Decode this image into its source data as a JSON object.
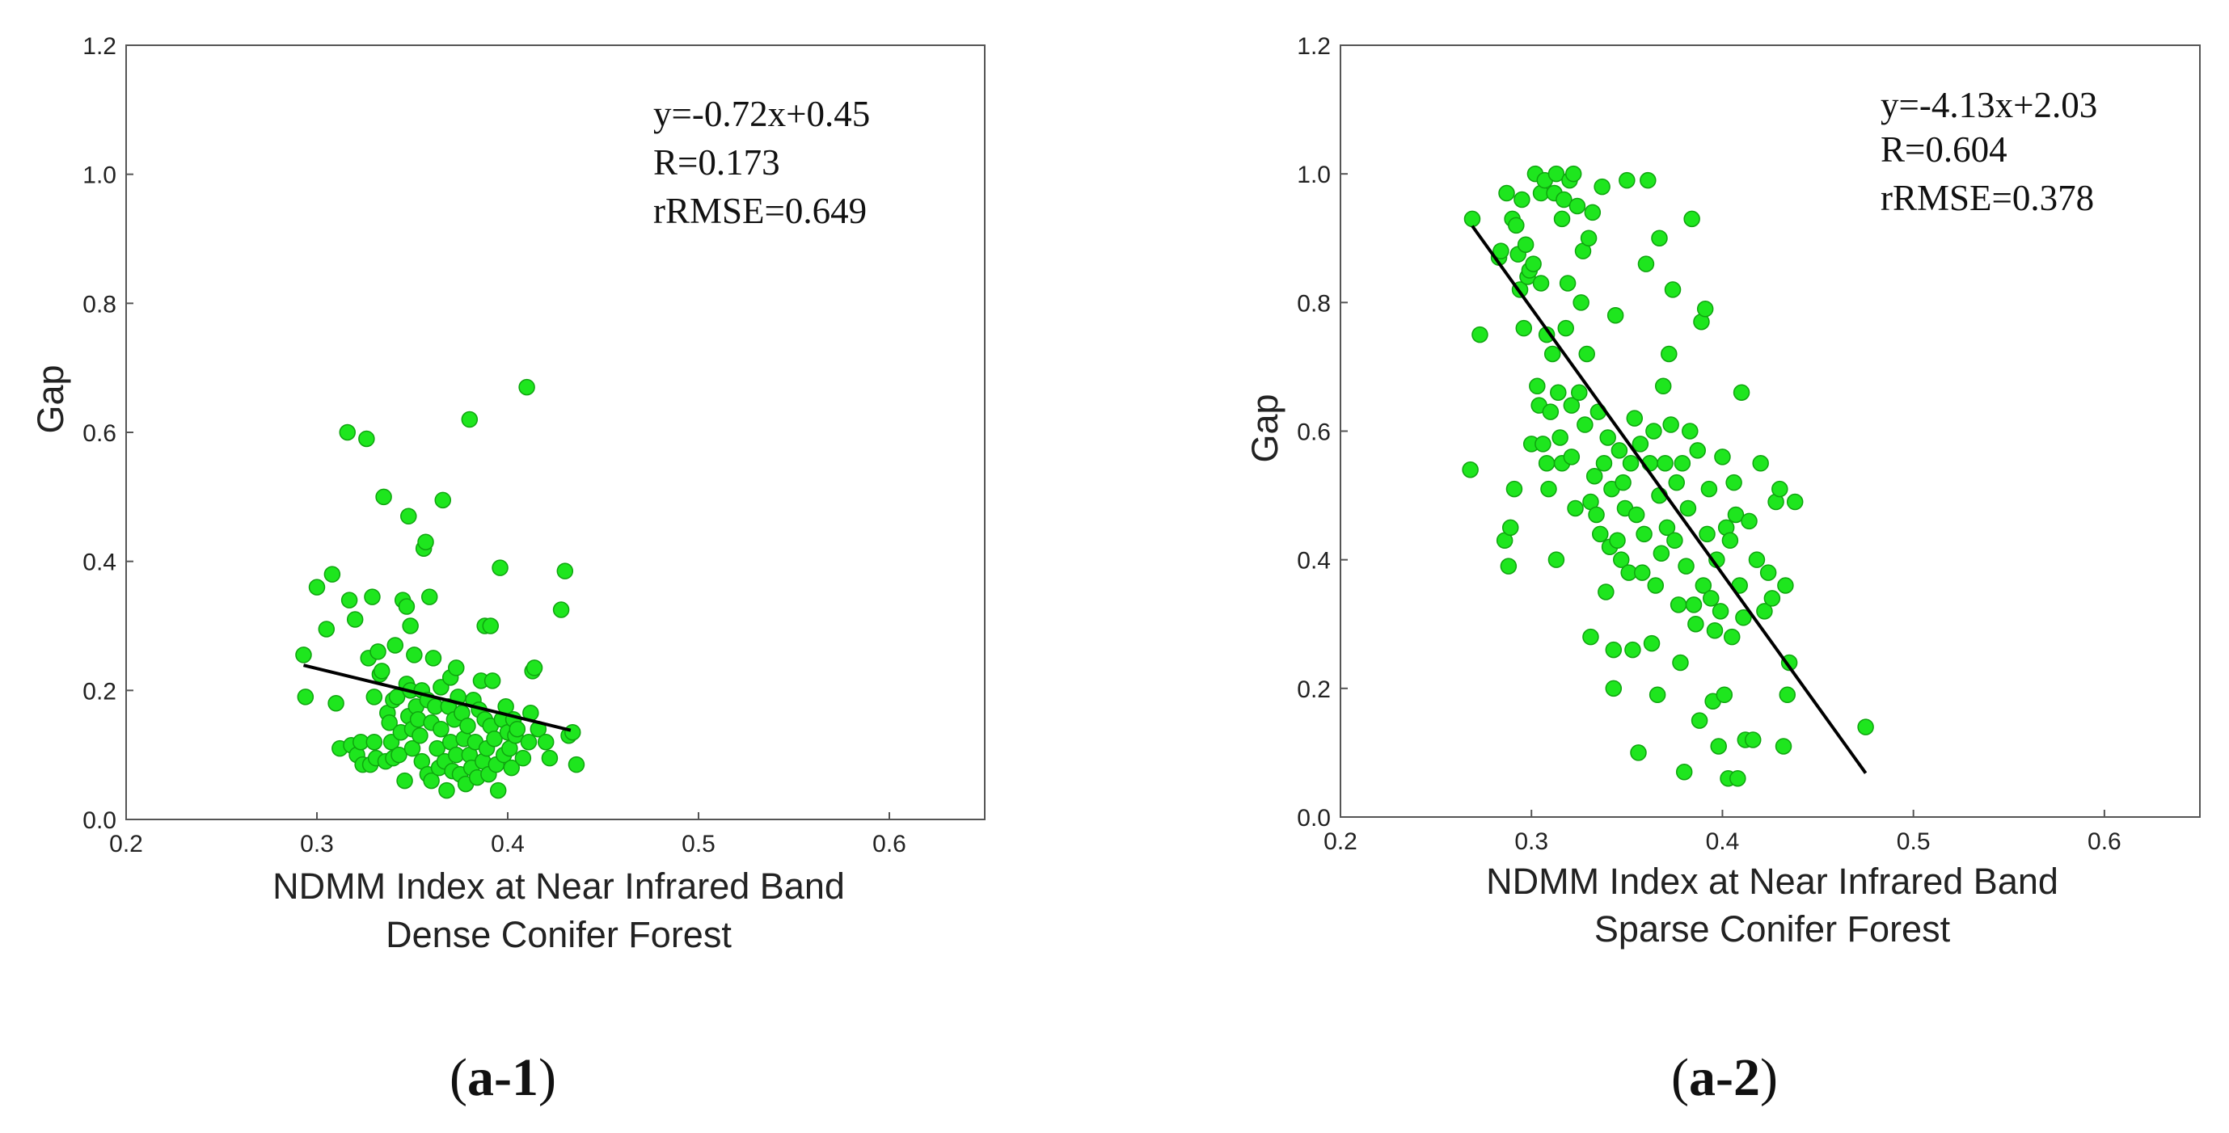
{
  "chart_data": [
    {
      "type": "scatter",
      "panel_label_parts": [
        "(",
        "a-1",
        ")"
      ],
      "xlabel": "NDMM Index at Near Infrared Band",
      "subtitle": "Dense Conifer Forest",
      "ylabel": "Gap",
      "xlim": [
        0.2,
        0.65
      ],
      "ylim": [
        0.0,
        1.2
      ],
      "xticks": [
        "0.2",
        "0.3",
        "0.4",
        "0.5",
        "0.6"
      ],
      "yticks": [
        "0.0",
        "0.2",
        "0.4",
        "0.6",
        "0.8",
        "1.0",
        "1.2"
      ],
      "annotations": [
        "y=-0.72x+0.45",
        "R=0.173",
        "rRMSE=0.649"
      ],
      "fit_line": {
        "slope": -0.72,
        "intercept": 0.45,
        "x_range": [
          0.293,
          0.433
        ]
      },
      "points": [
        [
          0.293,
          0.255
        ],
        [
          0.294,
          0.19
        ],
        [
          0.3,
          0.36
        ],
        [
          0.305,
          0.295
        ],
        [
          0.308,
          0.38
        ],
        [
          0.31,
          0.18
        ],
        [
          0.312,
          0.11
        ],
        [
          0.316,
          0.6
        ],
        [
          0.317,
          0.34
        ],
        [
          0.318,
          0.115
        ],
        [
          0.32,
          0.31
        ],
        [
          0.321,
          0.1
        ],
        [
          0.323,
          0.12
        ],
        [
          0.324,
          0.085
        ],
        [
          0.326,
          0.59
        ],
        [
          0.327,
          0.25
        ],
        [
          0.328,
          0.085
        ],
        [
          0.329,
          0.345
        ],
        [
          0.33,
          0.19
        ],
        [
          0.33,
          0.12
        ],
        [
          0.331,
          0.095
        ],
        [
          0.332,
          0.26
        ],
        [
          0.333,
          0.225
        ],
        [
          0.334,
          0.23
        ],
        [
          0.335,
          0.5
        ],
        [
          0.336,
          0.09
        ],
        [
          0.337,
          0.165
        ],
        [
          0.338,
          0.15
        ],
        [
          0.339,
          0.12
        ],
        [
          0.34,
          0.185
        ],
        [
          0.34,
          0.095
        ],
        [
          0.341,
          0.27
        ],
        [
          0.342,
          0.19
        ],
        [
          0.343,
          0.1
        ],
        [
          0.344,
          0.135
        ],
        [
          0.345,
          0.34
        ],
        [
          0.346,
          0.06
        ],
        [
          0.347,
          0.33
        ],
        [
          0.347,
          0.21
        ],
        [
          0.348,
          0.47
        ],
        [
          0.348,
          0.16
        ],
        [
          0.349,
          0.3
        ],
        [
          0.349,
          0.2
        ],
        [
          0.35,
          0.14
        ],
        [
          0.35,
          0.11
        ],
        [
          0.351,
          0.255
        ],
        [
          0.352,
          0.175
        ],
        [
          0.353,
          0.155
        ],
        [
          0.354,
          0.13
        ],
        [
          0.355,
          0.09
        ],
        [
          0.355,
          0.2
        ],
        [
          0.356,
          0.42
        ],
        [
          0.357,
          0.43
        ],
        [
          0.358,
          0.07
        ],
        [
          0.358,
          0.185
        ],
        [
          0.359,
          0.345
        ],
        [
          0.36,
          0.06
        ],
        [
          0.36,
          0.15
        ],
        [
          0.361,
          0.25
        ],
        [
          0.362,
          0.175
        ],
        [
          0.363,
          0.11
        ],
        [
          0.364,
          0.08
        ],
        [
          0.365,
          0.205
        ],
        [
          0.365,
          0.14
        ],
        [
          0.366,
          0.495
        ],
        [
          0.367,
          0.09
        ],
        [
          0.368,
          0.045
        ],
        [
          0.369,
          0.175
        ],
        [
          0.37,
          0.22
        ],
        [
          0.37,
          0.12
        ],
        [
          0.371,
          0.075
        ],
        [
          0.372,
          0.155
        ],
        [
          0.373,
          0.235
        ],
        [
          0.373,
          0.1
        ],
        [
          0.374,
          0.19
        ],
        [
          0.375,
          0.07
        ],
        [
          0.376,
          0.165
        ],
        [
          0.377,
          0.125
        ],
        [
          0.378,
          0.055
        ],
        [
          0.379,
          0.145
        ],
        [
          0.38,
          0.62
        ],
        [
          0.38,
          0.1
        ],
        [
          0.381,
          0.08
        ],
        [
          0.382,
          0.185
        ],
        [
          0.383,
          0.12
        ],
        [
          0.384,
          0.065
        ],
        [
          0.385,
          0.17
        ],
        [
          0.386,
          0.215
        ],
        [
          0.387,
          0.09
        ],
        [
          0.388,
          0.3
        ],
        [
          0.388,
          0.155
        ],
        [
          0.389,
          0.11
        ],
        [
          0.39,
          0.07
        ],
        [
          0.391,
          0.3
        ],
        [
          0.391,
          0.145
        ],
        [
          0.392,
          0.215
        ],
        [
          0.393,
          0.125
        ],
        [
          0.394,
          0.085
        ],
        [
          0.395,
          0.045
        ],
        [
          0.396,
          0.39
        ],
        [
          0.397,
          0.155
        ],
        [
          0.398,
          0.1
        ],
        [
          0.399,
          0.175
        ],
        [
          0.4,
          0.135
        ],
        [
          0.401,
          0.11
        ],
        [
          0.402,
          0.08
        ],
        [
          0.403,
          0.155
        ],
        [
          0.404,
          0.13
        ],
        [
          0.405,
          0.14
        ],
        [
          0.408,
          0.095
        ],
        [
          0.41,
          0.67
        ],
        [
          0.411,
          0.12
        ],
        [
          0.412,
          0.165
        ],
        [
          0.413,
          0.23
        ],
        [
          0.414,
          0.235
        ],
        [
          0.416,
          0.14
        ],
        [
          0.42,
          0.12
        ],
        [
          0.422,
          0.095
        ],
        [
          0.428,
          0.325
        ],
        [
          0.43,
          0.385
        ],
        [
          0.432,
          0.13
        ],
        [
          0.434,
          0.135
        ],
        [
          0.436,
          0.085
        ]
      ]
    },
    {
      "type": "scatter",
      "panel_label_parts": [
        "(",
        "a-2",
        ")"
      ],
      "xlabel": "NDMM Index at Near Infrared Band",
      "subtitle": "Sparse Conifer Forest",
      "ylabel": "Gap",
      "xlim": [
        0.2,
        0.65
      ],
      "ylim": [
        0.0,
        1.2
      ],
      "xticks": [
        "0.2",
        "0.3",
        "0.4",
        "0.5",
        "0.6"
      ],
      "yticks": [
        "0.0",
        "0.2",
        "0.4",
        "0.6",
        "0.8",
        "1.0",
        "1.2"
      ],
      "annotations": [
        "y=-4.13x+2.03",
        "R=0.604",
        "rRMSE=0.378"
      ],
      "fit_line": {
        "slope": -4.13,
        "intercept": 2.03,
        "x_range": [
          0.269,
          0.475
        ]
      },
      "points": [
        [
          0.268,
          0.54
        ],
        [
          0.269,
          0.93
        ],
        [
          0.273,
          0.75
        ],
        [
          0.283,
          0.87
        ],
        [
          0.284,
          0.88
        ],
        [
          0.286,
          0.43
        ],
        [
          0.287,
          0.97
        ],
        [
          0.288,
          0.39
        ],
        [
          0.289,
          0.45
        ],
        [
          0.29,
          0.93
        ],
        [
          0.291,
          0.51
        ],
        [
          0.292,
          0.92
        ],
        [
          0.293,
          0.875
        ],
        [
          0.294,
          0.82
        ],
        [
          0.295,
          0.96
        ],
        [
          0.296,
          0.76
        ],
        [
          0.297,
          0.89
        ],
        [
          0.298,
          0.84
        ],
        [
          0.299,
          0.85
        ],
        [
          0.3,
          0.58
        ],
        [
          0.301,
          0.86
        ],
        [
          0.302,
          1.0
        ],
        [
          0.303,
          0.67
        ],
        [
          0.304,
          0.64
        ],
        [
          0.305,
          0.97
        ],
        [
          0.305,
          0.83
        ],
        [
          0.306,
          0.58
        ],
        [
          0.307,
          0.99
        ],
        [
          0.308,
          0.55
        ],
        [
          0.308,
          0.75
        ],
        [
          0.309,
          0.51
        ],
        [
          0.31,
          0.63
        ],
        [
          0.311,
          0.72
        ],
        [
          0.312,
          0.97
        ],
        [
          0.313,
          1.0
        ],
        [
          0.313,
          0.4
        ],
        [
          0.314,
          0.66
        ],
        [
          0.315,
          0.59
        ],
        [
          0.316,
          0.55
        ],
        [
          0.316,
          0.93
        ],
        [
          0.317,
          0.96
        ],
        [
          0.318,
          0.76
        ],
        [
          0.319,
          0.83
        ],
        [
          0.32,
          0.99
        ],
        [
          0.321,
          0.56
        ],
        [
          0.321,
          0.64
        ],
        [
          0.322,
          1.0
        ],
        [
          0.323,
          0.48
        ],
        [
          0.324,
          0.95
        ],
        [
          0.325,
          0.66
        ],
        [
          0.326,
          0.8
        ],
        [
          0.327,
          0.88
        ],
        [
          0.328,
          0.61
        ],
        [
          0.329,
          0.72
        ],
        [
          0.33,
          0.9
        ],
        [
          0.331,
          0.49
        ],
        [
          0.331,
          0.28
        ],
        [
          0.332,
          0.94
        ],
        [
          0.333,
          0.53
        ],
        [
          0.334,
          0.47
        ],
        [
          0.335,
          0.63
        ],
        [
          0.336,
          0.44
        ],
        [
          0.337,
          0.98
        ],
        [
          0.338,
          0.55
        ],
        [
          0.339,
          0.35
        ],
        [
          0.34,
          0.59
        ],
        [
          0.341,
          0.42
        ],
        [
          0.342,
          0.51
        ],
        [
          0.343,
          0.2
        ],
        [
          0.343,
          0.26
        ],
        [
          0.344,
          0.78
        ],
        [
          0.345,
          0.43
        ],
        [
          0.346,
          0.57
        ],
        [
          0.347,
          0.4
        ],
        [
          0.348,
          0.52
        ],
        [
          0.349,
          0.48
        ],
        [
          0.35,
          0.99
        ],
        [
          0.351,
          0.38
        ],
        [
          0.352,
          0.55
        ],
        [
          0.353,
          0.26
        ],
        [
          0.354,
          0.62
        ],
        [
          0.355,
          0.47
        ],
        [
          0.356,
          0.1
        ],
        [
          0.357,
          0.58
        ],
        [
          0.358,
          0.38
        ],
        [
          0.359,
          0.44
        ],
        [
          0.36,
          0.86
        ],
        [
          0.361,
          0.99
        ],
        [
          0.362,
          0.55
        ],
        [
          0.363,
          0.27
        ],
        [
          0.364,
          0.6
        ],
        [
          0.365,
          0.36
        ],
        [
          0.366,
          0.19
        ],
        [
          0.367,
          0.5
        ],
        [
          0.367,
          0.9
        ],
        [
          0.368,
          0.41
        ],
        [
          0.369,
          0.67
        ],
        [
          0.37,
          0.55
        ],
        [
          0.371,
          0.45
        ],
        [
          0.372,
          0.72
        ],
        [
          0.373,
          0.61
        ],
        [
          0.374,
          0.82
        ],
        [
          0.375,
          0.43
        ],
        [
          0.376,
          0.52
        ],
        [
          0.377,
          0.33
        ],
        [
          0.378,
          0.24
        ],
        [
          0.379,
          0.55
        ],
        [
          0.38,
          0.07
        ],
        [
          0.381,
          0.39
        ],
        [
          0.382,
          0.48
        ],
        [
          0.383,
          0.6
        ],
        [
          0.384,
          0.93
        ],
        [
          0.385,
          0.33
        ],
        [
          0.386,
          0.3
        ],
        [
          0.387,
          0.57
        ],
        [
          0.388,
          0.15
        ],
        [
          0.389,
          0.77
        ],
        [
          0.39,
          0.36
        ],
        [
          0.391,
          0.79
        ],
        [
          0.392,
          0.44
        ],
        [
          0.393,
          0.51
        ],
        [
          0.394,
          0.34
        ],
        [
          0.395,
          0.18
        ],
        [
          0.396,
          0.29
        ],
        [
          0.397,
          0.4
        ],
        [
          0.398,
          0.11
        ],
        [
          0.399,
          0.32
        ],
        [
          0.4,
          0.56
        ],
        [
          0.401,
          0.19
        ],
        [
          0.402,
          0.45
        ],
        [
          0.403,
          0.06
        ],
        [
          0.404,
          0.43
        ],
        [
          0.405,
          0.28
        ],
        [
          0.406,
          0.52
        ],
        [
          0.407,
          0.47
        ],
        [
          0.408,
          0.06
        ],
        [
          0.409,
          0.36
        ],
        [
          0.41,
          0.66
        ],
        [
          0.411,
          0.31
        ],
        [
          0.412,
          0.12
        ],
        [
          0.414,
          0.46
        ],
        [
          0.416,
          0.12
        ],
        [
          0.418,
          0.4
        ],
        [
          0.42,
          0.55
        ],
        [
          0.422,
          0.32
        ],
        [
          0.424,
          0.38
        ],
        [
          0.426,
          0.34
        ],
        [
          0.428,
          0.49
        ],
        [
          0.43,
          0.51
        ],
        [
          0.432,
          0.11
        ],
        [
          0.433,
          0.36
        ],
        [
          0.434,
          0.19
        ],
        [
          0.435,
          0.24
        ],
        [
          0.438,
          0.49
        ],
        [
          0.475,
          0.14
        ]
      ]
    }
  ]
}
